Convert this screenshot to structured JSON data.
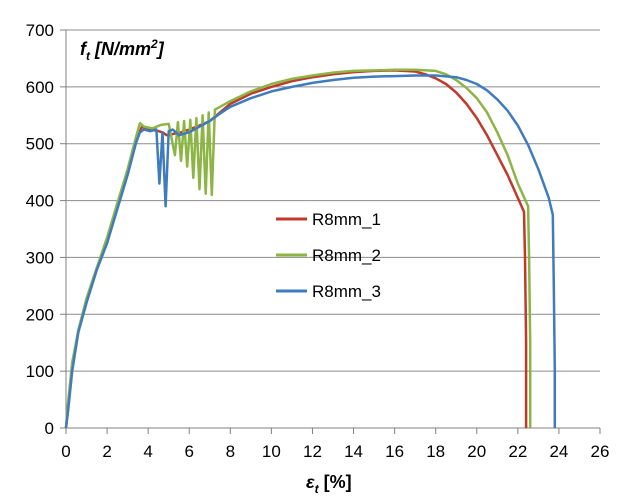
{
  "chart_data": {
    "type": "line",
    "xlabel": {
      "symbol": "ε",
      "sub": "t",
      "unit": "[%]"
    },
    "ylabel": {
      "symbol": "f",
      "sub": "t",
      "unit": "[N/mm",
      "sup": "2",
      "close": "]"
    },
    "xlim": [
      0,
      26
    ],
    "ylim": [
      0,
      700
    ],
    "xticks": [
      0,
      2,
      4,
      6,
      8,
      10,
      12,
      14,
      16,
      18,
      20,
      22,
      24,
      26
    ],
    "yticks": [
      0,
      100,
      200,
      300,
      400,
      500,
      600,
      700
    ],
    "grid": "horizontal",
    "legend_position": "center",
    "series": [
      {
        "name": "R8mm_1",
        "color": "#c0392b",
        "points": [
          [
            0,
            0
          ],
          [
            0.1,
            40
          ],
          [
            0.3,
            110
          ],
          [
            0.6,
            170
          ],
          [
            1,
            225
          ],
          [
            1.5,
            280
          ],
          [
            2,
            330
          ],
          [
            2.5,
            390
          ],
          [
            3,
            450
          ],
          [
            3.4,
            505
          ],
          [
            3.7,
            530
          ],
          [
            4,
            525
          ],
          [
            4.4,
            523
          ],
          [
            4.7,
            520
          ],
          [
            4.9,
            515
          ],
          [
            5.2,
            517
          ],
          [
            5.6,
            520
          ],
          [
            6,
            525
          ],
          [
            6.5,
            532
          ],
          [
            7,
            540
          ],
          [
            7.5,
            555
          ],
          [
            8,
            570
          ],
          [
            9,
            588
          ],
          [
            10,
            600
          ],
          [
            11,
            610
          ],
          [
            12,
            617
          ],
          [
            13,
            622
          ],
          [
            14,
            626
          ],
          [
            15,
            628
          ],
          [
            16,
            629
          ],
          [
            17,
            627
          ],
          [
            17.5,
            622
          ],
          [
            18,
            615
          ],
          [
            18.5,
            605
          ],
          [
            19,
            590
          ],
          [
            19.5,
            570
          ],
          [
            20,
            545
          ],
          [
            20.5,
            515
          ],
          [
            21,
            480
          ],
          [
            21.5,
            445
          ],
          [
            22,
            405
          ],
          [
            22.3,
            380
          ],
          [
            22.35,
            300
          ],
          [
            22.4,
            150
          ],
          [
            22.4,
            0
          ]
        ]
      },
      {
        "name": "R8mm_2",
        "color": "#8cb545",
        "points": [
          [
            0,
            0
          ],
          [
            0.1,
            45
          ],
          [
            0.3,
            115
          ],
          [
            0.6,
            172
          ],
          [
            1,
            228
          ],
          [
            1.5,
            282
          ],
          [
            2,
            335
          ],
          [
            2.5,
            395
          ],
          [
            3,
            455
          ],
          [
            3.4,
            510
          ],
          [
            3.6,
            536
          ],
          [
            3.8,
            530
          ],
          [
            4.2,
            527
          ],
          [
            4.6,
            533
          ],
          [
            5,
            535
          ],
          [
            5.3,
            480
          ],
          [
            5.45,
            538
          ],
          [
            5.6,
            470
          ],
          [
            5.75,
            540
          ],
          [
            5.9,
            460
          ],
          [
            6.05,
            542
          ],
          [
            6.2,
            440
          ],
          [
            6.35,
            545
          ],
          [
            6.5,
            420
          ],
          [
            6.65,
            550
          ],
          [
            6.8,
            412
          ],
          [
            6.95,
            555
          ],
          [
            7.1,
            410
          ],
          [
            7.25,
            560
          ],
          [
            7.5,
            565
          ],
          [
            8,
            575
          ],
          [
            9,
            592
          ],
          [
            10,
            605
          ],
          [
            11,
            614
          ],
          [
            12,
            620
          ],
          [
            13,
            625
          ],
          [
            14,
            628
          ],
          [
            15,
            629
          ],
          [
            16,
            630
          ],
          [
            17,
            630
          ],
          [
            18,
            628
          ],
          [
            18.5,
            622
          ],
          [
            19,
            612
          ],
          [
            19.5,
            598
          ],
          [
            20,
            580
          ],
          [
            20.5,
            555
          ],
          [
            21,
            520
          ],
          [
            21.5,
            480
          ],
          [
            22,
            430
          ],
          [
            22.5,
            390
          ],
          [
            22.55,
            300
          ],
          [
            22.6,
            150
          ],
          [
            22.6,
            0
          ]
        ]
      },
      {
        "name": "R8mm_3",
        "color": "#3f7bbf",
        "points": [
          [
            0,
            0
          ],
          [
            0.1,
            30
          ],
          [
            0.3,
            100
          ],
          [
            0.6,
            168
          ],
          [
            1,
            220
          ],
          [
            1.5,
            278
          ],
          [
            2,
            325
          ],
          [
            2.5,
            385
          ],
          [
            3,
            445
          ],
          [
            3.4,
            500
          ],
          [
            3.6,
            520
          ],
          [
            3.8,
            525
          ],
          [
            4.1,
            522
          ],
          [
            4.4,
            525
          ],
          [
            4.55,
            430
          ],
          [
            4.7,
            520
          ],
          [
            4.85,
            390
          ],
          [
            5,
            522
          ],
          [
            5.2,
            525
          ],
          [
            5.5,
            515
          ],
          [
            6,
            520
          ],
          [
            6.5,
            530
          ],
          [
            7,
            540
          ],
          [
            7.5,
            553
          ],
          [
            8,
            565
          ],
          [
            9,
            580
          ],
          [
            10,
            592
          ],
          [
            11,
            600
          ],
          [
            12,
            607
          ],
          [
            13,
            612
          ],
          [
            14,
            616
          ],
          [
            15,
            618
          ],
          [
            16,
            619
          ],
          [
            17,
            620
          ],
          [
            18,
            620
          ],
          [
            19,
            617
          ],
          [
            19.5,
            612
          ],
          [
            20,
            605
          ],
          [
            20.5,
            594
          ],
          [
            21,
            578
          ],
          [
            21.5,
            558
          ],
          [
            22,
            532
          ],
          [
            22.5,
            498
          ],
          [
            23,
            455
          ],
          [
            23.5,
            405
          ],
          [
            23.7,
            375
          ],
          [
            23.75,
            250
          ],
          [
            23.8,
            100
          ],
          [
            23.8,
            0
          ]
        ]
      }
    ]
  }
}
